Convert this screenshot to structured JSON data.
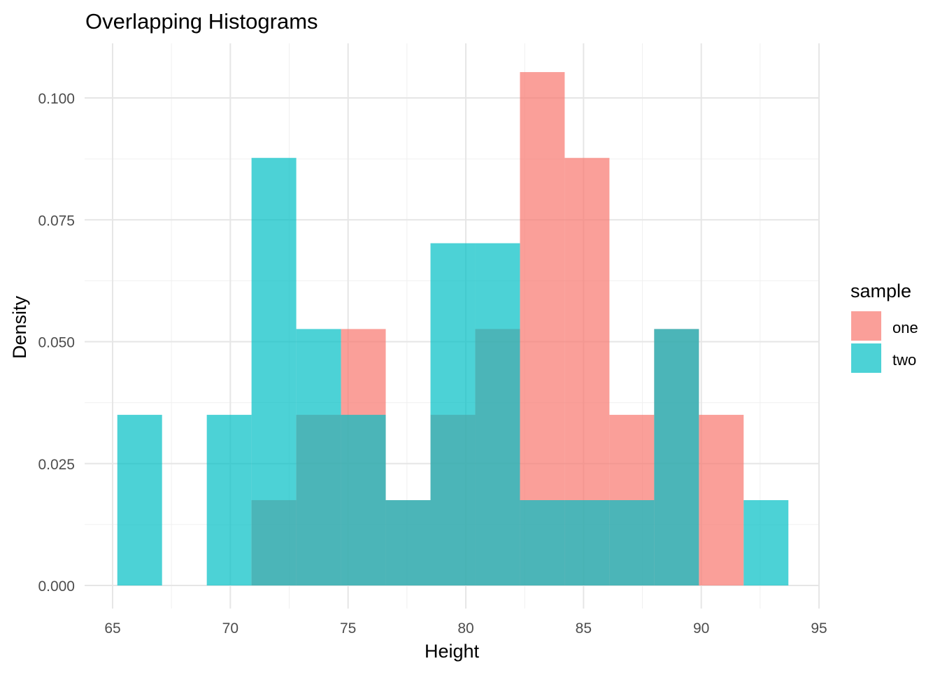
{
  "chart_data": {
    "type": "histogram",
    "title": "Overlapping Histograms",
    "xlabel": "Height",
    "ylabel": "Density",
    "xlim": [
      63.8,
      95
    ],
    "ylim": [
      -0.0045,
      0.1108
    ],
    "xticks": [
      "65",
      "70",
      "75",
      "80",
      "85",
      "90",
      "95"
    ],
    "xtick_values": [
      65,
      70,
      75,
      80,
      85,
      90,
      95
    ],
    "yticks": [
      "0.000",
      "0.025",
      "0.050",
      "0.075",
      "0.100"
    ],
    "ytick_values": [
      0,
      0.025,
      0.05,
      0.075,
      0.1
    ],
    "grid": true,
    "bin_start": 65.2,
    "bin_width": 1.9,
    "legend": {
      "title": "sample",
      "position": "right"
    },
    "series": [
      {
        "name": "one",
        "color": "#F8766D",
        "alpha": 0.7,
        "values": [
          0,
          0,
          0,
          0.0175,
          0.035,
          0.0526,
          0.0175,
          0.035,
          0.0526,
          0.1053,
          0.0877,
          0.035,
          0.0526,
          0.035,
          0
        ]
      },
      {
        "name": "two",
        "color": "#00BFC4",
        "alpha": 0.7,
        "values": [
          0.035,
          0,
          0.035,
          0.0877,
          0.0526,
          0.035,
          0.0175,
          0.0702,
          0.0702,
          0.0175,
          0.0175,
          0.0175,
          0.0526,
          0,
          0.0175
        ]
      }
    ]
  }
}
